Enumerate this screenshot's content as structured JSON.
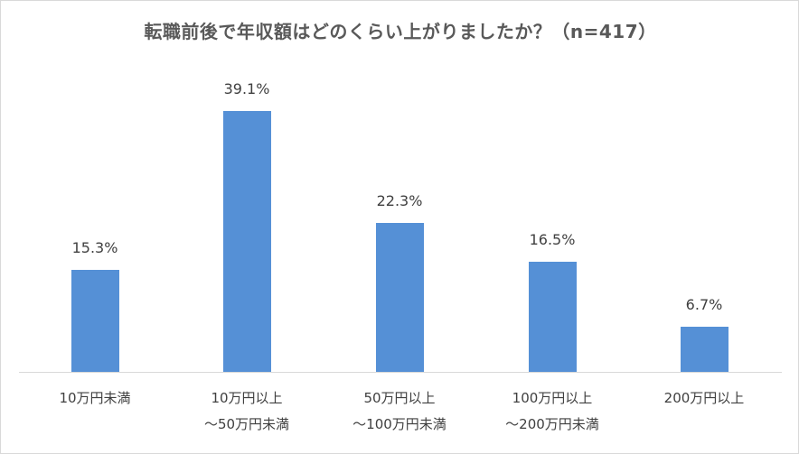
{
  "chart_data": {
    "type": "bar",
    "title": "転職前後で年収額はどのくらい上がりましたか？（n=417）",
    "categories": [
      "10万円未満",
      "10万円以上～50万円未満",
      "50万円以上～100万円未満",
      "100万円以上～200万円未満",
      "200万円以上"
    ],
    "category_lines": [
      [
        "10万円未満",
        ""
      ],
      [
        "10万円以上",
        "～50万円未満"
      ],
      [
        "50万円以上",
        "～100万円未満"
      ],
      [
        "100万円以上",
        "～200万円未満"
      ],
      [
        "200万円以上",
        ""
      ]
    ],
    "values": [
      15.3,
      39.1,
      22.3,
      16.5,
      6.7
    ],
    "labels": [
      "15.3%",
      "39.1%",
      "22.3%",
      "16.5%",
      "6.7%"
    ],
    "unit": "%",
    "xlabel": "",
    "ylabel": "",
    "ylim": [
      0,
      42
    ],
    "grid": false,
    "legend": "none",
    "bar_color": "#5590d6"
  }
}
